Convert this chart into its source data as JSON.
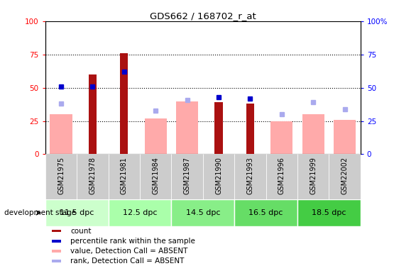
{
  "title": "GDS662 / 168702_r_at",
  "samples": [
    "GSM21975",
    "GSM21978",
    "GSM21981",
    "GSM21984",
    "GSM21987",
    "GSM21990",
    "GSM21993",
    "GSM21996",
    "GSM21999",
    "GSM22002"
  ],
  "count_values": [
    0,
    60,
    76,
    0,
    0,
    39,
    38,
    0,
    0,
    0
  ],
  "percentile_rank": [
    51,
    51,
    62,
    null,
    null,
    43,
    42,
    null,
    null,
    null
  ],
  "absent_value": [
    30,
    null,
    null,
    27,
    40,
    null,
    null,
    25,
    30,
    26
  ],
  "absent_rank": [
    38,
    null,
    null,
    33,
    41,
    null,
    null,
    30,
    39,
    34
  ],
  "stage_labels": [
    "11.5 dpc",
    "12.5 dpc",
    "14.5 dpc",
    "16.5 dpc",
    "18.5 dpc"
  ],
  "stage_colors": [
    "#ccffcc",
    "#aaffaa",
    "#88ee88",
    "#66dd66",
    "#44cc44"
  ],
  "ylim": [
    0,
    100
  ],
  "yticks": [
    0,
    25,
    50,
    75,
    100
  ],
  "bar_color_count": "#aa1111",
  "bar_color_absent_value": "#ffaaaa",
  "dot_color_percentile": "#0000cc",
  "dot_color_absent_rank": "#aaaaee",
  "background_color": "#ffffff"
}
